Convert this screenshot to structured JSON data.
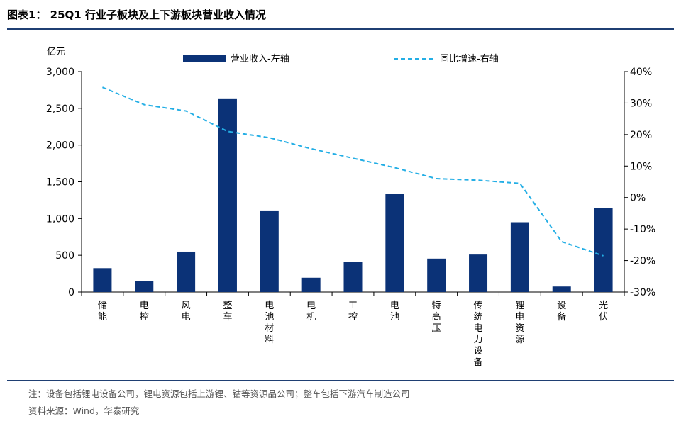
{
  "title": "图表1： 25Q1 行业子板块及上下游板块营业收入情况",
  "note": "注：设备包括锂电设备公司，锂电资源包括上游锂、钴等资源品公司；整车包括下游汽车制造公司",
  "source": "资料来源：Wind，华泰研究",
  "colors": {
    "bar": "#0b3277",
    "line": "#23aee5",
    "rule": "#1f3f73"
  },
  "chart_data": {
    "type": "bar",
    "unit_left": "亿元",
    "categories": [
      "储能",
      "电控",
      "风电",
      "整车",
      "电池材料",
      "电机",
      "工控",
      "电池",
      "特高压",
      "传统电力设备",
      "锂电资源",
      "设备",
      "光伏"
    ],
    "series": [
      {
        "name": "营业收入-左轴",
        "type": "bar",
        "axis": "left",
        "values": [
          325,
          145,
          550,
          2635,
          1110,
          195,
          410,
          1340,
          455,
          510,
          950,
          75,
          1145
        ]
      },
      {
        "name": "同比增速-右轴",
        "type": "line",
        "style": "dashed",
        "axis": "right",
        "values": [
          35,
          29.5,
          27.5,
          21,
          19,
          15.5,
          12.5,
          9.5,
          6,
          5.5,
          4.5,
          -14,
          -18.5
        ]
      }
    ],
    "y_left": {
      "min": 0,
      "max": 3000,
      "ticks": [
        0,
        500,
        1000,
        1500,
        2000,
        2500,
        3000
      ],
      "tick_labels": [
        "0",
        "500",
        "1,000",
        "1,500",
        "2,000",
        "2,500",
        "3,000"
      ]
    },
    "y_right": {
      "min": -30,
      "max": 40,
      "ticks": [
        -30,
        -20,
        -10,
        0,
        10,
        20,
        30,
        40
      ],
      "tick_labels": [
        "-30%",
        "-20%",
        "-10%",
        "0%",
        "10%",
        "20%",
        "30%",
        "40%"
      ]
    },
    "grid": false,
    "legend": "top"
  }
}
